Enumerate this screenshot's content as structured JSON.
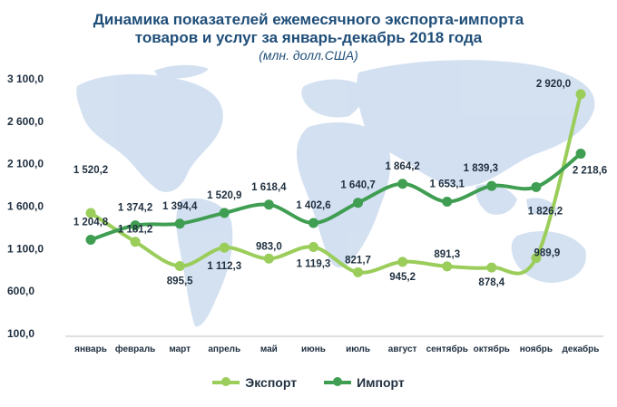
{
  "chart_data": {
    "type": "line",
    "title": "Динамика показателей ежемесячного экспорта-импорта",
    "title_line2": "товаров и услуг за январь-декабрь 2018 года",
    "subtitle": "(млн. долл.США)",
    "categories": [
      "январь",
      "февраль",
      "март",
      "апрель",
      "май",
      "июнь",
      "июль",
      "август",
      "сентябрь",
      "октябрь",
      "ноябрь",
      "декабрь"
    ],
    "y_ticks": [
      "100,0",
      "600,0",
      "1 100,0",
      "1 600,0",
      "2 100,0",
      "2 600,0",
      "3 100,0"
    ],
    "ylim": [
      100,
      3100
    ],
    "grid": false,
    "legend_position": "bottom",
    "series": [
      {
        "name": "Экспорт",
        "color": "#9acd5a",
        "values": [
          1520.2,
          1181.2,
          895.5,
          1112.3,
          983.0,
          1119.3,
          821.7,
          945.2,
          891.3,
          878.4,
          989.9,
          2920.0
        ],
        "labels": [
          "1 520,2",
          "1 181,2",
          "895,5",
          "1 112,3",
          "983,0",
          "1 119,3",
          "821,7",
          "945,2",
          "891,3",
          "878,4",
          "989,9",
          "2 920,0"
        ]
      },
      {
        "name": "Импорт",
        "color": "#3f9e52",
        "values": [
          1204.8,
          1374.2,
          1394.4,
          1520.9,
          1618.4,
          1402.6,
          1640.7,
          1864.2,
          1653.1,
          1839.3,
          1826.2,
          2218.6
        ],
        "labels": [
          "1 204,8",
          "1 374,2",
          "1 394,4",
          "1 520,9",
          "1 618,4",
          "1 402,6",
          "1 640,7",
          "1 864,2",
          "1 653,1",
          "1 839,3",
          "1 826,2",
          "2 218,6"
        ]
      }
    ]
  }
}
